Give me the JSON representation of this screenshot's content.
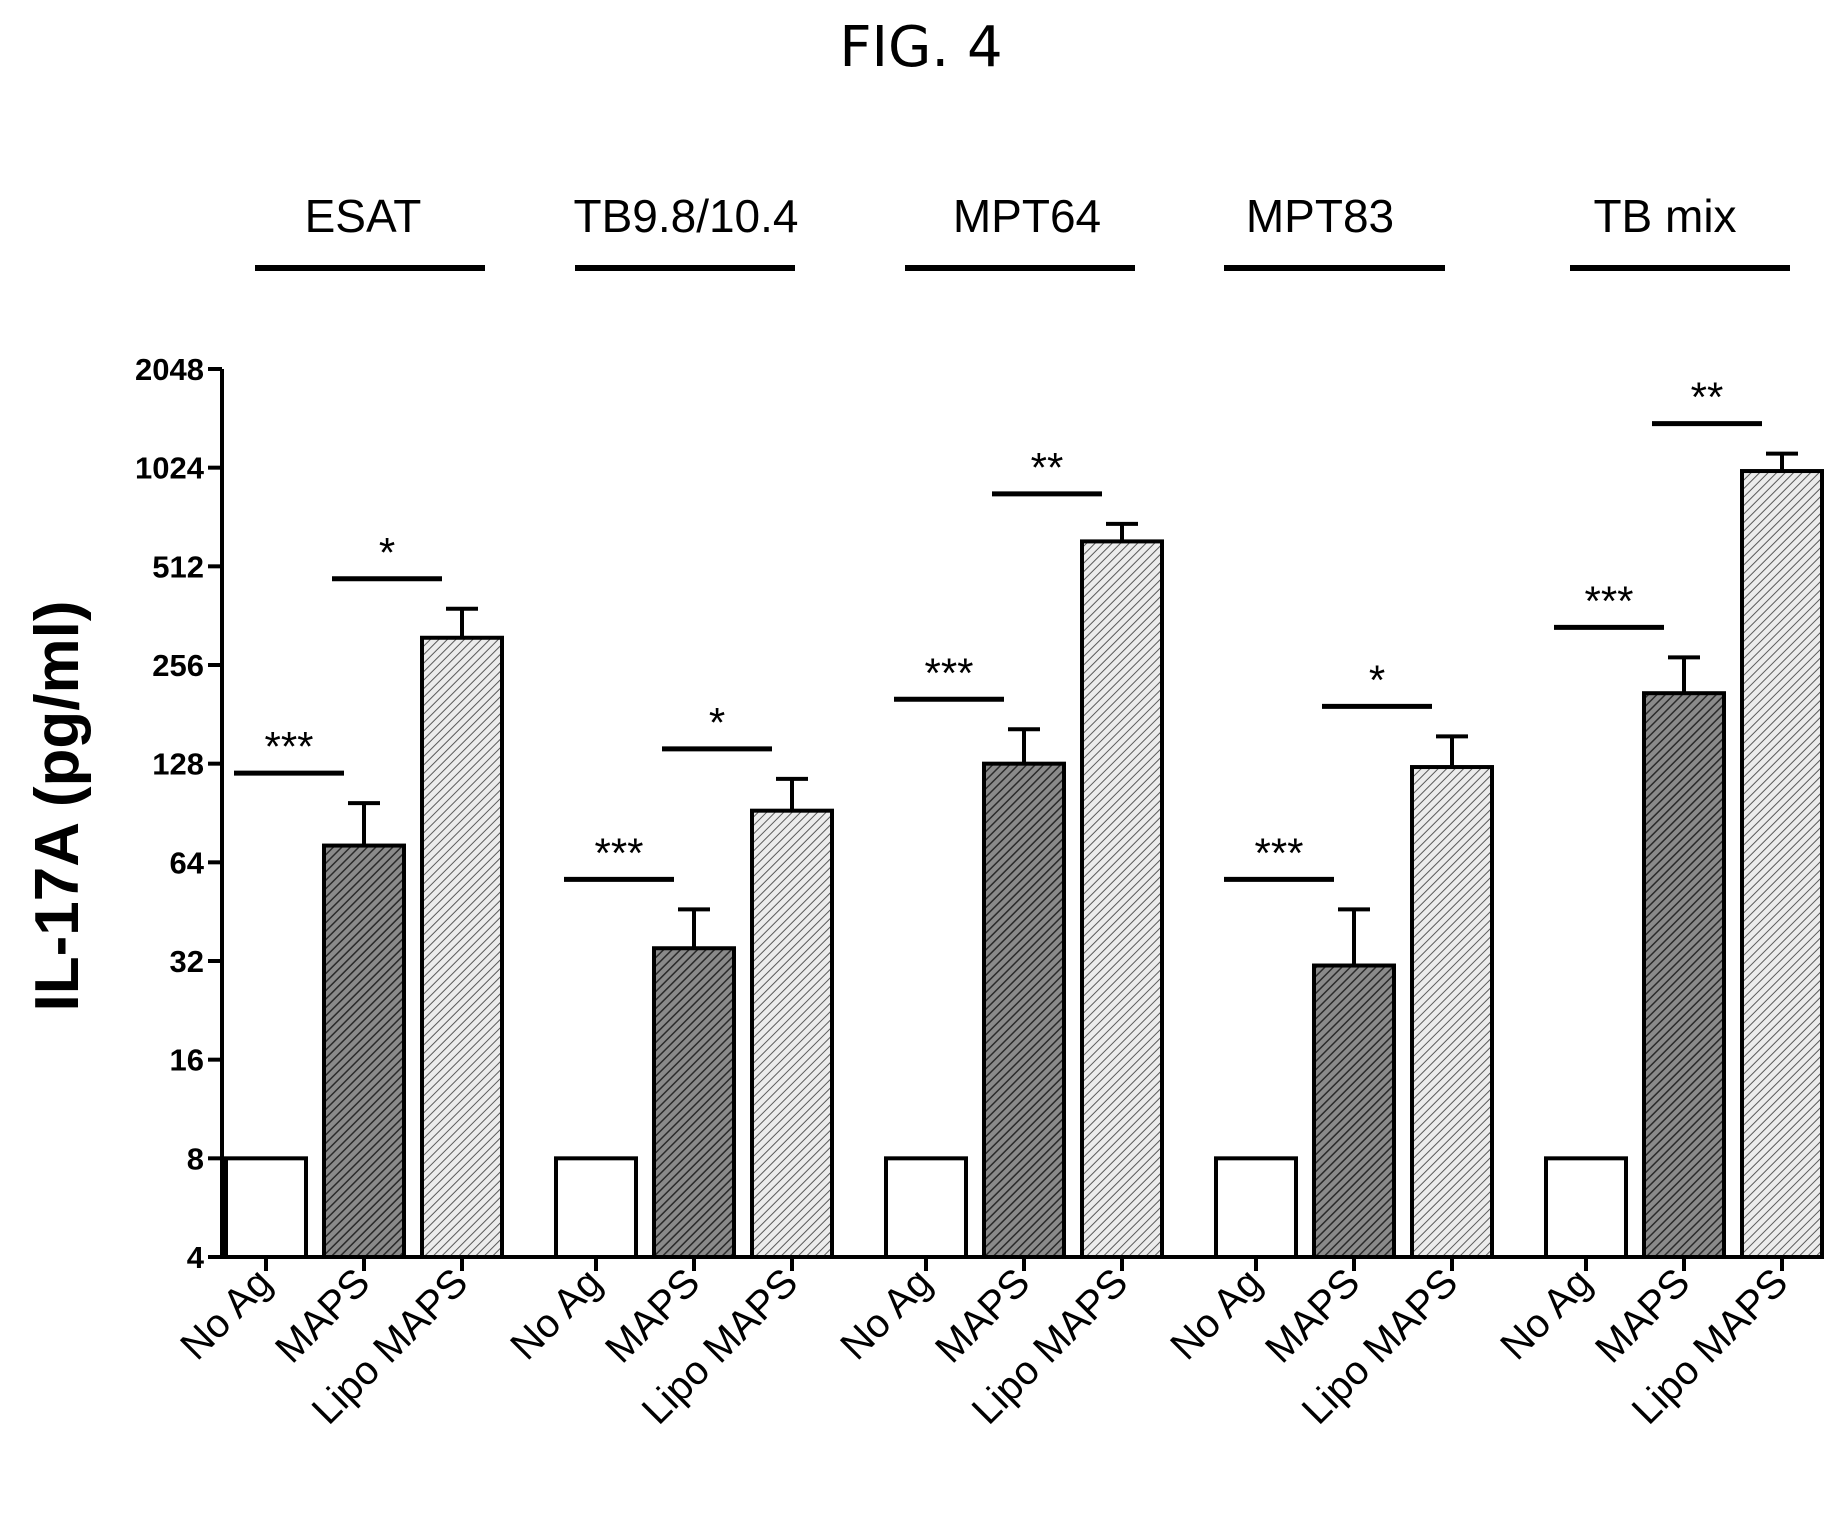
{
  "figure_title": "FIG. 4",
  "colors": {
    "ink": "#000000",
    "background": "#ffffff",
    "maps_fill": "#6f6f6f",
    "lipo_fill": "#b8b8b8",
    "noag_fill": "#ffffff"
  },
  "chart_data": {
    "type": "bar",
    "title": "",
    "ylabel": "IL-17A (pg/ml)",
    "xlabel": "",
    "y_scale": "log2",
    "ylim": [
      4,
      2048
    ],
    "yticks": [
      4,
      8,
      16,
      32,
      64,
      128,
      256,
      512,
      1024,
      2048
    ],
    "ytick_labels": [
      "4",
      "8",
      "16",
      "32",
      "64",
      "128",
      "256",
      "512",
      "1024",
      "2048"
    ],
    "categories": [
      "No Ag",
      "MAPS",
      "Lipo MAPS"
    ],
    "groups": [
      {
        "name": "ESAT",
        "bars": [
          {
            "category": "No Ag",
            "value": 8,
            "error": 0
          },
          {
            "category": "MAPS",
            "value": 72,
            "error": 25
          },
          {
            "category": "Lipo MAPS",
            "value": 310,
            "error": 70
          }
        ],
        "significance": [
          {
            "from": 0,
            "to": 1,
            "label": "***"
          },
          {
            "from": 1,
            "to": 2,
            "label": "*"
          }
        ]
      },
      {
        "name": "TB9.8/10.4",
        "bars": [
          {
            "category": "No Ag",
            "value": 8,
            "error": 0
          },
          {
            "category": "MAPS",
            "value": 35,
            "error": 11
          },
          {
            "category": "Lipo MAPS",
            "value": 92,
            "error": 23
          }
        ],
        "significance": [
          {
            "from": 0,
            "to": 1,
            "label": "***"
          },
          {
            "from": 1,
            "to": 2,
            "label": "*"
          }
        ]
      },
      {
        "name": "MPT64",
        "bars": [
          {
            "category": "No Ag",
            "value": 8,
            "error": 0
          },
          {
            "category": "MAPS",
            "value": 128,
            "error": 35
          },
          {
            "category": "Lipo MAPS",
            "value": 610,
            "error": 80
          }
        ],
        "significance": [
          {
            "from": 0,
            "to": 1,
            "label": "***"
          },
          {
            "from": 1,
            "to": 2,
            "label": "**"
          }
        ]
      },
      {
        "name": "MPT83",
        "bars": [
          {
            "category": "No Ag",
            "value": 8,
            "error": 0
          },
          {
            "category": "MAPS",
            "value": 31,
            "error": 15
          },
          {
            "category": "Lipo MAPS",
            "value": 125,
            "error": 30
          }
        ],
        "significance": [
          {
            "from": 0,
            "to": 1,
            "label": "***"
          },
          {
            "from": 1,
            "to": 2,
            "label": "*"
          }
        ]
      },
      {
        "name": "TB mix",
        "bars": [
          {
            "category": "No Ag",
            "value": 8,
            "error": 0
          },
          {
            "category": "MAPS",
            "value": 210,
            "error": 60
          },
          {
            "category": "Lipo MAPS",
            "value": 1000,
            "error": 130
          }
        ],
        "significance": [
          {
            "from": 0,
            "to": 1,
            "label": "***"
          },
          {
            "from": 1,
            "to": 2,
            "label": "**"
          }
        ]
      }
    ]
  }
}
